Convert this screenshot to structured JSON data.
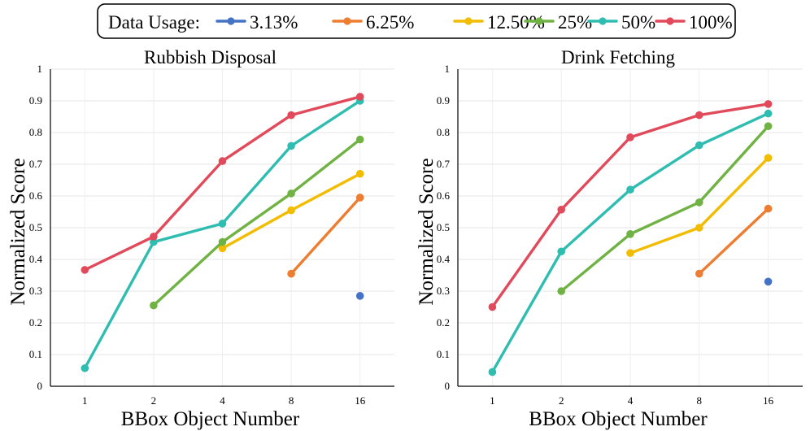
{
  "legend": {
    "title": "Data Usage:",
    "entries": [
      {
        "name": "3.13%",
        "color": "#4472C4"
      },
      {
        "name": "6.25%",
        "color": "#ED7D31"
      },
      {
        "name": "12.50%",
        "color": "#F2BC00"
      },
      {
        "name": "25%",
        "color": "#70B244"
      },
      {
        "name": "50%",
        "color": "#2EBDB0"
      },
      {
        "name": "100%",
        "color": "#E04A5A"
      }
    ]
  },
  "chart_data": [
    {
      "type": "line",
      "title": "Rubbish Disposal",
      "xlabel": "BBox Object Number",
      "ylabel": "Normalized Score",
      "categories": [
        "1",
        "2",
        "4",
        "8",
        "16"
      ],
      "ylim": [
        0,
        1
      ],
      "yticks": [
        "0",
        "0.1",
        "0.2",
        "0.3",
        "0.4",
        "0.5",
        "0.6",
        "0.7",
        "0.8",
        "0.9",
        "1"
      ],
      "grid": true,
      "series": [
        {
          "name": "3.13%",
          "values": [
            null,
            null,
            null,
            null,
            0.285
          ]
        },
        {
          "name": "6.25%",
          "values": [
            null,
            null,
            null,
            0.355,
            0.595
          ]
        },
        {
          "name": "12.50%",
          "values": [
            null,
            null,
            0.435,
            0.555,
            0.67
          ]
        },
        {
          "name": "25%",
          "values": [
            null,
            0.255,
            0.455,
            0.608,
            0.778
          ]
        },
        {
          "name": "50%",
          "values": [
            0.057,
            0.455,
            0.513,
            0.758,
            0.9
          ]
        },
        {
          "name": "100%",
          "values": [
            0.367,
            0.472,
            0.71,
            0.855,
            0.913
          ]
        }
      ]
    },
    {
      "type": "line",
      "title": "Drink Fetching",
      "xlabel": "BBox Object Number",
      "ylabel": "Normalized Score",
      "categories": [
        "1",
        "2",
        "4",
        "8",
        "16"
      ],
      "ylim": [
        0,
        1
      ],
      "yticks": [
        "0",
        "0.1",
        "0.2",
        "0.3",
        "0.4",
        "0.5",
        "0.6",
        "0.7",
        "0.8",
        "0.9",
        "1"
      ],
      "grid": true,
      "series": [
        {
          "name": "3.13%",
          "values": [
            null,
            null,
            null,
            null,
            0.33
          ]
        },
        {
          "name": "6.25%",
          "values": [
            null,
            null,
            null,
            0.355,
            0.56
          ]
        },
        {
          "name": "12.50%",
          "values": [
            null,
            null,
            0.42,
            0.5,
            0.72
          ]
        },
        {
          "name": "25%",
          "values": [
            null,
            0.3,
            0.48,
            0.58,
            0.82
          ]
        },
        {
          "name": "50%",
          "values": [
            0.045,
            0.425,
            0.62,
            0.76,
            0.86
          ]
        },
        {
          "name": "100%",
          "values": [
            0.25,
            0.557,
            0.785,
            0.855,
            0.89
          ]
        }
      ]
    }
  ]
}
